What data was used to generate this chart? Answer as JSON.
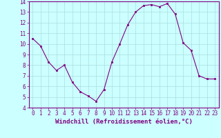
{
  "x": [
    0,
    1,
    2,
    3,
    4,
    5,
    6,
    7,
    8,
    9,
    10,
    11,
    12,
    13,
    14,
    15,
    16,
    17,
    18,
    19,
    20,
    21,
    22,
    23
  ],
  "y": [
    10.5,
    9.8,
    8.3,
    7.5,
    8.0,
    6.4,
    5.5,
    5.1,
    4.6,
    5.7,
    8.3,
    10.0,
    11.8,
    13.0,
    13.6,
    13.7,
    13.5,
    13.8,
    12.8,
    10.1,
    9.4,
    7.0,
    6.7,
    6.7
  ],
  "line_color": "#800080",
  "marker_color": "#800080",
  "bg_color": "#ccffff",
  "grid_color": "#aadddd",
  "xlabel": "Windchill (Refroidissement éolien,°C)",
  "xlim": [
    -0.5,
    23.5
  ],
  "ylim": [
    4,
    14
  ],
  "yticks": [
    4,
    5,
    6,
    7,
    8,
    9,
    10,
    11,
    12,
    13,
    14
  ],
  "xticks": [
    0,
    1,
    2,
    3,
    4,
    5,
    6,
    7,
    8,
    9,
    10,
    11,
    12,
    13,
    14,
    15,
    16,
    17,
    18,
    19,
    20,
    21,
    22,
    23
  ],
  "tick_color": "#800080",
  "label_color": "#800080",
  "spine_color": "#800080",
  "tick_fontsize": 5.5,
  "xlabel_fontsize": 6.5
}
